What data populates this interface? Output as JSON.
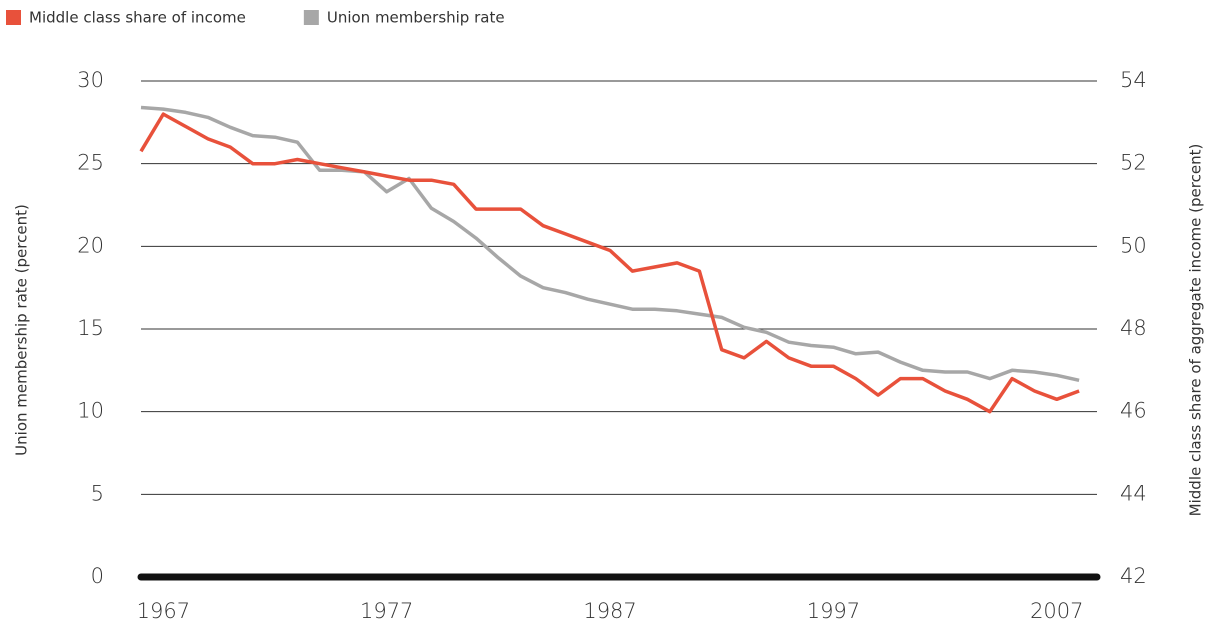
{
  "chart_data": {
    "type": "line",
    "x": [
      1966,
      1967,
      1968,
      1969,
      1970,
      1971,
      1972,
      1973,
      1974,
      1975,
      1976,
      1977,
      1978,
      1979,
      1980,
      1981,
      1982,
      1983,
      1984,
      1985,
      1986,
      1987,
      1988,
      1989,
      1990,
      1991,
      1992,
      1993,
      1994,
      1995,
      1996,
      1997,
      1998,
      1999,
      2000,
      2001,
      2002,
      2003,
      2004,
      2005,
      2006,
      2007,
      2008
    ],
    "series": [
      {
        "name": "Middle class share of income",
        "color": "#e8513b",
        "axis": "y2",
        "values": [
          52.3,
          53.2,
          52.9,
          52.6,
          52.4,
          52.0,
          52.0,
          52.1,
          52.0,
          51.9,
          51.8,
          51.7,
          51.6,
          51.6,
          51.5,
          50.9,
          50.9,
          50.9,
          50.5,
          50.3,
          50.1,
          49.9,
          49.4,
          49.5,
          49.6,
          49.4,
          47.5,
          47.3,
          47.7,
          47.3,
          47.1,
          47.1,
          46.8,
          46.4,
          46.8,
          46.8,
          46.5,
          46.3,
          46.0,
          46.8,
          46.5,
          46.3,
          46.5
        ]
      },
      {
        "name": "Union membership rate",
        "color": "#a7a7a7",
        "values": [
          28.4,
          28.3,
          28.1,
          27.8,
          27.2,
          26.7,
          26.6,
          26.3,
          24.6,
          24.6,
          24.5,
          23.3,
          24.1,
          22.3,
          21.5,
          20.5,
          19.3,
          18.2,
          17.5,
          17.2,
          16.8,
          16.5,
          16.2,
          16.2,
          16.1,
          15.9,
          15.7,
          15.1,
          14.8,
          14.2,
          14.0,
          13.9,
          13.5,
          13.6,
          13.0,
          12.5,
          12.4,
          12.4,
          12.0,
          12.5,
          12.4,
          12.2,
          11.9
        ]
      }
    ],
    "xlim": [
      1966,
      2008.8
    ],
    "xticks": [
      1967,
      1977,
      1987,
      1997,
      2007
    ],
    "ylim": [
      0,
      30
    ],
    "yticks": [
      0,
      5,
      10,
      15,
      20,
      25,
      30
    ],
    "y2lim": [
      42,
      54
    ],
    "y2ticks": [
      42,
      44,
      46,
      48,
      50,
      52,
      54
    ],
    "ylabel": "Union membership rate (percent)",
    "y2label": "Middle class share of aggregate income (percent)",
    "grid": true,
    "legend": "top-left"
  }
}
